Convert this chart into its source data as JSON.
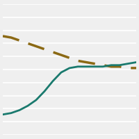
{
  "x": [
    0,
    1,
    2,
    3,
    4,
    5,
    6,
    7,
    8,
    9,
    10,
    11,
    12,
    13,
    14,
    15,
    16
  ],
  "dashed_line": [
    68,
    67,
    65,
    63,
    61,
    59,
    57,
    55,
    53,
    51,
    50,
    49,
    48,
    47,
    47,
    46,
    46
  ],
  "solid_line": [
    14,
    15,
    17,
    20,
    24,
    30,
    37,
    43,
    46,
    47,
    47,
    47,
    47,
    48,
    48,
    49,
    50
  ],
  "dashed_color": "#8B6914",
  "solid_color": "#1A7A6E",
  "background_color": "#EFEFEF",
  "ylim": [
    0,
    90
  ],
  "xlim": [
    0,
    16
  ],
  "grid_color": "#FFFFFF",
  "linewidth_dashed": 2.5,
  "linewidth_solid": 2.0,
  "n_gridlines": 10
}
